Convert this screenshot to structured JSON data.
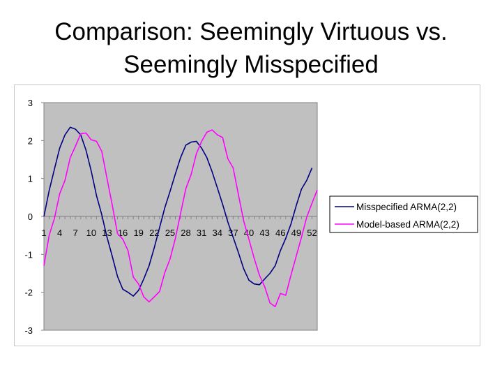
{
  "slide": {
    "title_line1": "Comparison: Seemingly Virtuous vs.",
    "title_line2": "Seemingly Misspecified"
  },
  "colors": {
    "plot_area": "#c0c0c0",
    "series_1": "#000080",
    "series_2": "#ff00ff",
    "axis": "#808080"
  },
  "chart_data": {
    "type": "line",
    "title": "",
    "xlabel": "",
    "ylabel": "",
    "ylim": [
      -3,
      3
    ],
    "y_ticks": [
      "3",
      "2",
      "1",
      "0",
      "-1",
      "-2",
      "-3"
    ],
    "x_ticks": [
      "1",
      "4",
      "7",
      "10",
      "13",
      "16",
      "19",
      "22",
      "25",
      "28",
      "31",
      "34",
      "37",
      "40",
      "43",
      "46",
      "49",
      "52"
    ],
    "x": [
      1,
      2,
      3,
      4,
      5,
      6,
      7,
      8,
      9,
      10,
      11,
      12,
      13,
      14,
      15,
      16,
      17,
      18,
      19,
      20,
      21,
      22,
      23,
      24,
      25,
      26,
      27,
      28,
      29,
      30,
      31,
      32,
      33,
      34,
      35,
      36,
      37,
      38,
      39,
      40,
      41,
      42,
      43,
      44,
      45,
      46,
      47,
      48,
      49,
      50,
      51,
      52,
      53
    ],
    "grid": false,
    "legend_position": "right",
    "series": [
      {
        "name": "Misspecified ARMA(2,2)",
        "color": "#000080",
        "values": [
          0.0,
          0.68,
          1.25,
          1.8,
          2.15,
          2.35,
          2.3,
          2.15,
          1.75,
          1.2,
          0.55,
          0.05,
          -0.55,
          -1.05,
          -1.58,
          -1.92,
          -2.0,
          -2.1,
          -1.95,
          -1.65,
          -1.3,
          -0.82,
          -0.3,
          0.23,
          0.66,
          1.12,
          1.55,
          1.88,
          1.96,
          1.98,
          1.8,
          1.55,
          1.18,
          0.75,
          0.32,
          -0.15,
          -0.55,
          -0.95,
          -1.38,
          -1.68,
          -1.78,
          -1.8,
          -1.65,
          -1.5,
          -1.3,
          -0.9,
          -0.58,
          -0.2,
          0.28,
          0.72,
          0.95,
          1.28,
          null
        ]
      },
      {
        "name": "Model-based ARMA(2,2)",
        "color": "#ff00ff",
        "values": [
          -1.3,
          -0.5,
          -0.05,
          0.6,
          0.95,
          1.55,
          1.85,
          2.18,
          2.2,
          2.02,
          1.98,
          1.72,
          1.0,
          0.3,
          -0.45,
          -0.6,
          -0.9,
          -1.6,
          -1.78,
          -2.12,
          -2.25,
          -2.12,
          -1.98,
          -1.48,
          -1.12,
          -0.58,
          0.08,
          0.73,
          1.1,
          1.65,
          1.98,
          2.22,
          2.28,
          2.15,
          2.08,
          1.52,
          1.28,
          0.58,
          -0.12,
          -0.6,
          -1.1,
          -1.55,
          -1.85,
          -2.28,
          -2.38,
          -2.03,
          -2.08,
          -1.55,
          -1.05,
          -0.55,
          -0.02,
          0.35,
          0.7
        ]
      }
    ]
  }
}
